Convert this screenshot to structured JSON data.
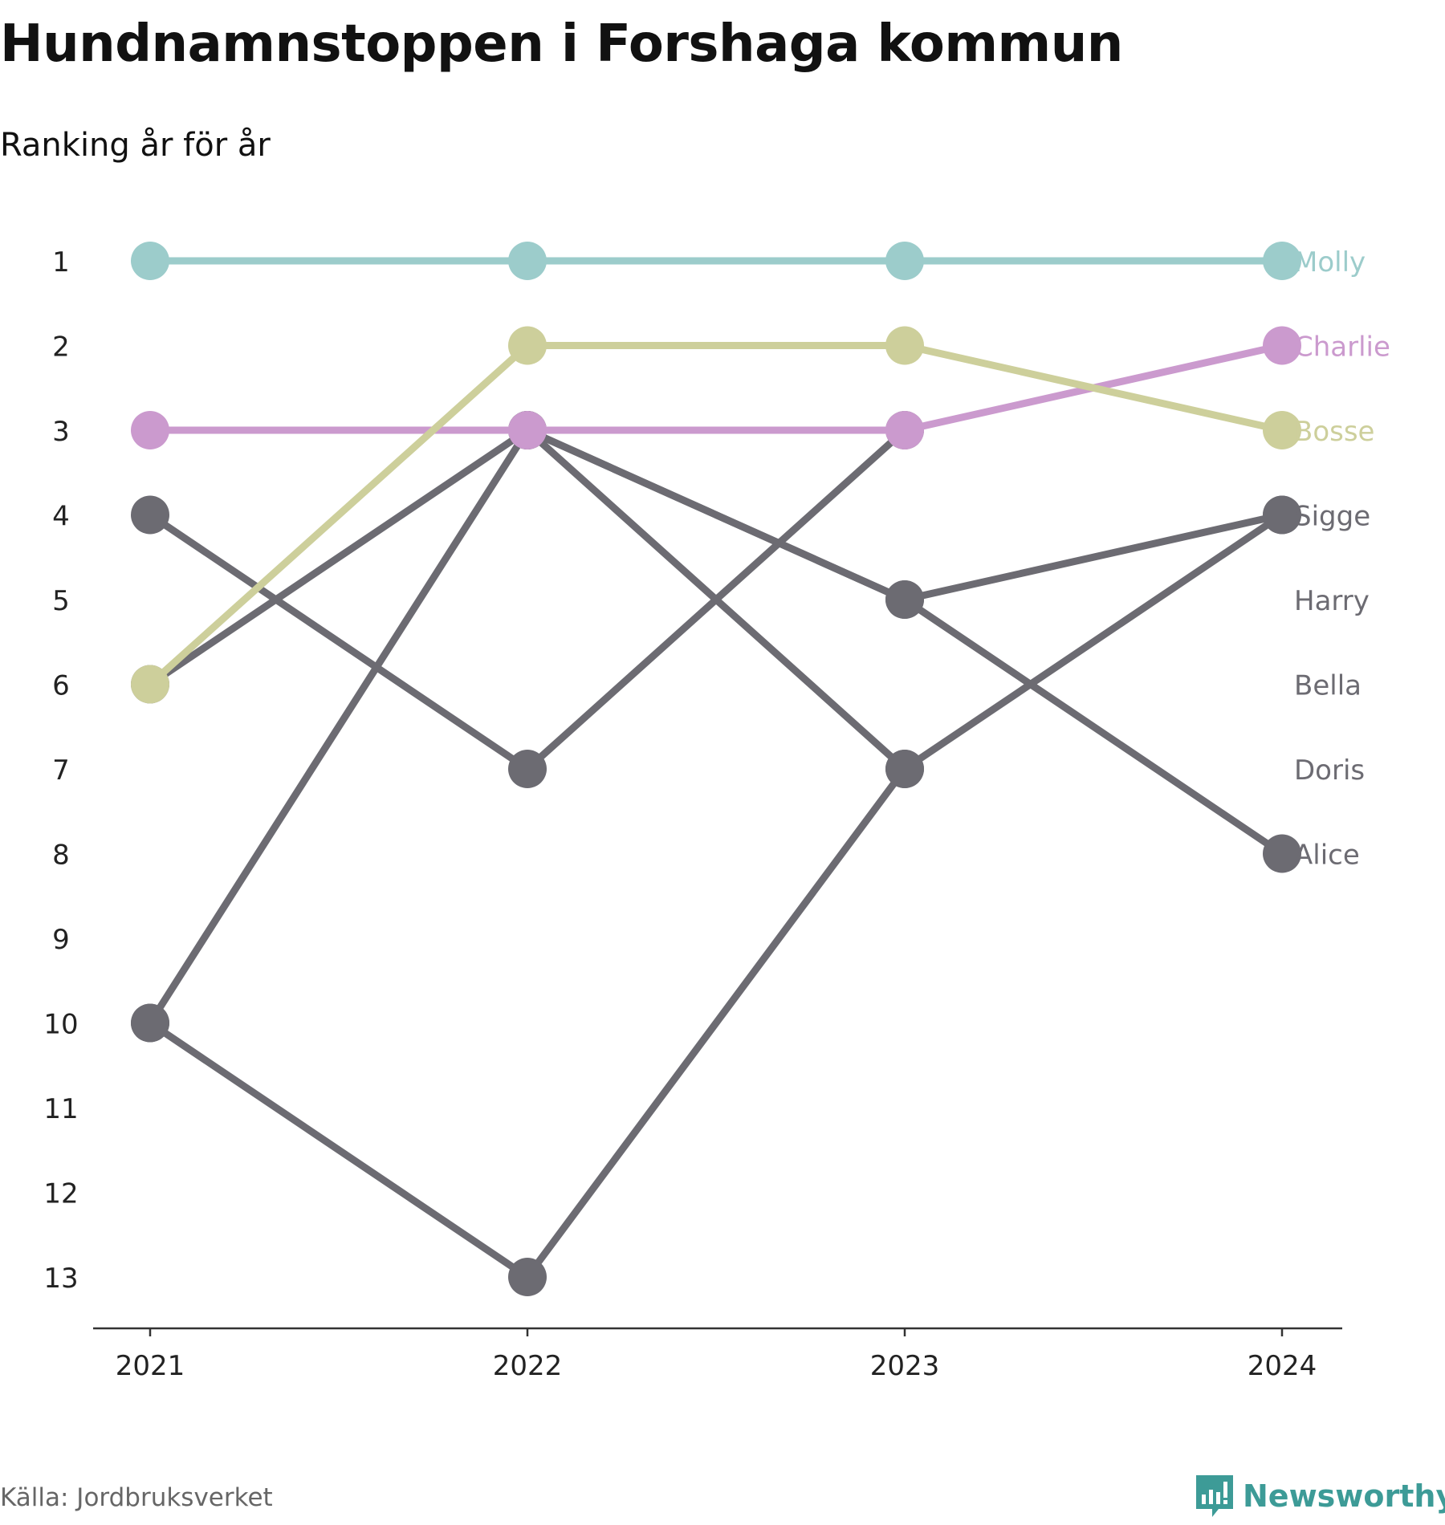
{
  "title": "Hundnamnstoppen i Forshaga kommun",
  "subtitle": "Ranking år för år",
  "source": "Källa: Jordbruksverket",
  "brand": {
    "name": "Newsworthy",
    "icon": "newsworthy-logo-icon",
    "color": "#3d9b97"
  },
  "chart_data": {
    "type": "line",
    "x": [
      "2021",
      "2022",
      "2023",
      "2024"
    ],
    "y_ticks": [
      1,
      2,
      3,
      4,
      5,
      6,
      7,
      8,
      9,
      10,
      11,
      12,
      13
    ],
    "ylim": [
      1,
      13
    ],
    "y_inverted": true,
    "grid": false,
    "legend": "labels at line ends (right)",
    "series": [
      {
        "name": "Molly",
        "values": [
          1,
          1,
          1,
          1
        ],
        "color": "#9ccccb"
      },
      {
        "name": "Charlie",
        "values": [
          3,
          3,
          3,
          2
        ],
        "color": "#cb9ace"
      },
      {
        "name": "Bosse",
        "values": [
          6,
          2,
          2,
          3
        ],
        "color": "#cdcf9b"
      },
      {
        "name": "Sigge",
        "values": [
          6,
          3,
          5,
          4
        ],
        "color": "#6c6b72"
      },
      {
        "name": "Harry",
        "values": [
          4,
          7,
          3,
          null
        ],
        "color": "#6c6b72"
      },
      {
        "name": "Bella",
        "values": [
          10,
          3,
          7,
          4
        ],
        "color": "#6c6b72"
      },
      {
        "name": "Doris",
        "values": [
          10,
          13,
          7,
          null
        ],
        "color": "#6c6b72"
      },
      {
        "name": "Alice",
        "values": [
          null,
          3,
          5,
          8
        ],
        "color": "#6c6b72"
      }
    ]
  }
}
